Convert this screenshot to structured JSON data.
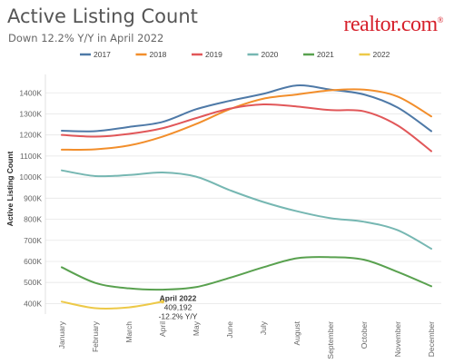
{
  "header": {
    "title": "Active Listing Count",
    "subtitle": "Down 12.2% Y/Y in April 2022",
    "logo_text": "realtor.com",
    "logo_mark": "®"
  },
  "chart_data": {
    "type": "line",
    "ylabel": "Active Listing Count",
    "xlabel": "",
    "categories": [
      "January",
      "February",
      "March",
      "April",
      "May",
      "June",
      "July",
      "August",
      "September",
      "October",
      "November",
      "December"
    ],
    "yticks": [
      "400K",
      "500K",
      "600K",
      "700K",
      "800K",
      "900K",
      "1000K",
      "1100K",
      "1200K",
      "1300K",
      "1400K"
    ],
    "ylim": [
      350000,
      1470000
    ],
    "grid": "horizontal",
    "legend_position": "top",
    "series": [
      {
        "name": "2017",
        "color": "#4e79a7",
        "values": [
          1220000,
          1218000,
          1238000,
          1262000,
          1322000,
          1362000,
          1395000,
          1435000,
          1415000,
          1392000,
          1330000,
          1218000
        ]
      },
      {
        "name": "2018",
        "color": "#f28e2b",
        "values": [
          1130000,
          1132000,
          1150000,
          1192000,
          1252000,
          1322000,
          1372000,
          1392000,
          1412000,
          1415000,
          1382000,
          1288000
        ]
      },
      {
        "name": "2019",
        "color": "#e15759",
        "values": [
          1200000,
          1192000,
          1205000,
          1232000,
          1280000,
          1325000,
          1345000,
          1335000,
          1318000,
          1312000,
          1245000,
          1123000
        ]
      },
      {
        "name": "2020",
        "color": "#76b7b2",
        "values": [
          1032000,
          1005000,
          1010000,
          1022000,
          1002000,
          938000,
          882000,
          838000,
          805000,
          788000,
          748000,
          660000
        ]
      },
      {
        "name": "2021",
        "color": "#59a14f",
        "values": [
          572000,
          498000,
          472000,
          466000,
          478000,
          522000,
          572000,
          615000,
          620000,
          608000,
          550000,
          482000
        ]
      },
      {
        "name": "2022",
        "color": "#edc948",
        "values": [
          409000,
          378000,
          382000,
          409192,
          null,
          null,
          null,
          null,
          null,
          null,
          null,
          null
        ]
      }
    ],
    "annotation": {
      "month": "April",
      "line1": "April 2022",
      "line2": "409,192",
      "line3": "-12.2% Y/Y"
    }
  }
}
